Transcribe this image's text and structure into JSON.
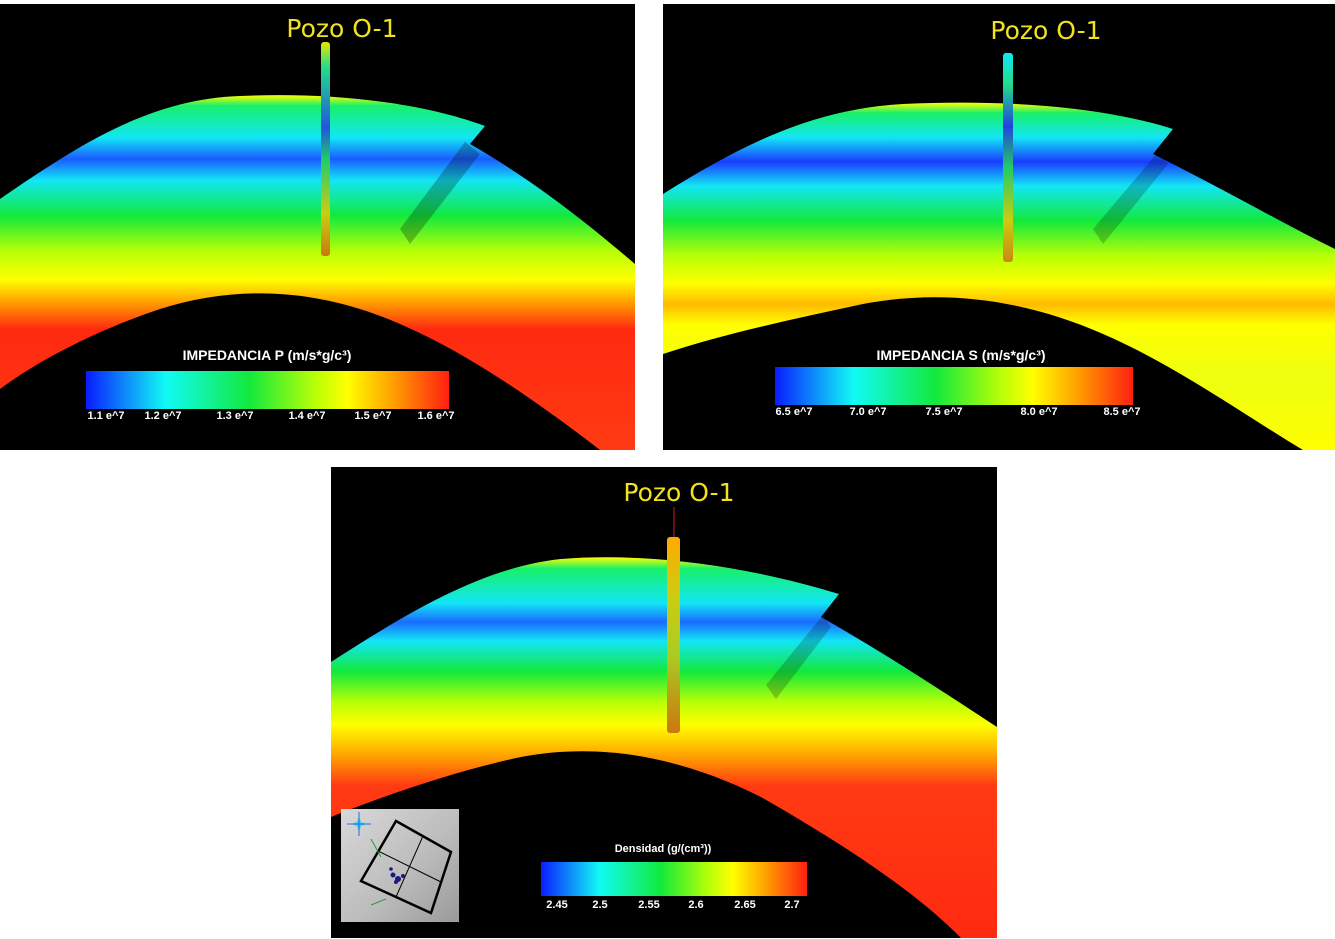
{
  "panels": {
    "p_impedance": {
      "well_label": "Pozo O-1",
      "colorbar_title": "IMPEDANCIA P (m/s*g/c³)",
      "ticks": [
        "1.1 e^7",
        "1.2 e^7",
        "1.3 e^7",
        "1.4 e^7",
        "1.5 e^7",
        "1.6 e^7"
      ]
    },
    "s_impedance": {
      "well_label": "Pozo O-1",
      "colorbar_title": "IMPEDANCIA S (m/s*g/c³)",
      "ticks": [
        "6.5 e^7",
        "7.0 e^7",
        "7.5 e^7",
        "8.0 e^7",
        "8.5 e^7"
      ]
    },
    "density": {
      "well_label": "Pozo O-1",
      "colorbar_title": "Densidad  (g/(cm³))",
      "ticks": [
        "2.45",
        "2.5",
        "2.55",
        "2.6",
        "2.65",
        "2.7"
      ]
    }
  },
  "colors": {
    "background": "#000000",
    "well_label": "#f2e21d",
    "scale_low": "#0a1cff",
    "scale_mid": "#12e93c",
    "scale_high": "#ff1f10"
  }
}
